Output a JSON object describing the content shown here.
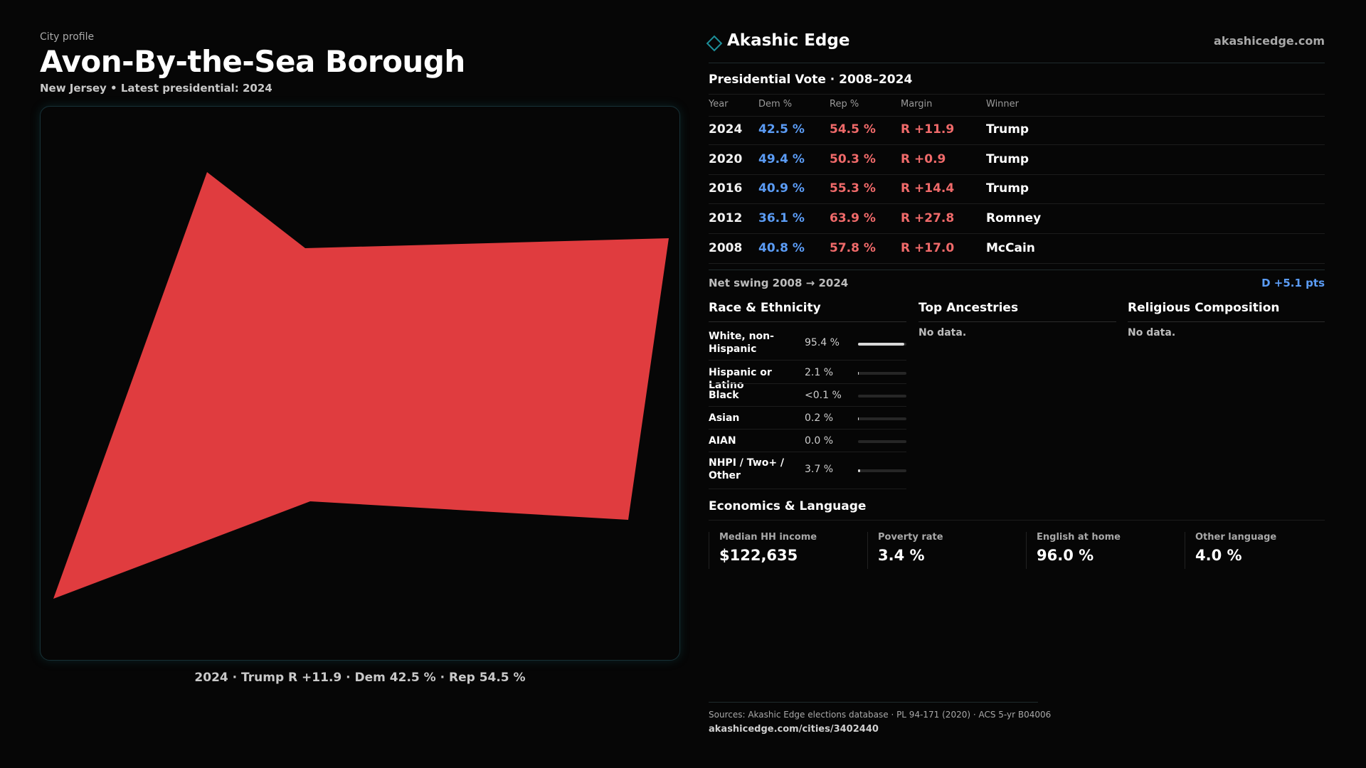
{
  "header": {
    "eyebrow": "City profile",
    "title": "Avon-By-the-Sea Borough",
    "subtitle": "New Jersey • Latest presidential: 2024"
  },
  "map": {
    "caption": "2024 · Trump R +11.9 · Dem 42.5 % · Rep 54.5 %",
    "fill_color": "#e03c3f"
  },
  "brand": {
    "name": "Akashic Edge",
    "url": "akashicedge.com",
    "icon": "diamond-icon"
  },
  "presidential": {
    "title": "Presidential Vote · 2008–2024",
    "columns": [
      "Year",
      "Dem %",
      "Rep %",
      "Margin",
      "Winner"
    ],
    "rows": [
      {
        "year": "2024",
        "dem": "42.5 %",
        "rep": "54.5 %",
        "margin": "R +11.9",
        "winner": "Trump"
      },
      {
        "year": "2020",
        "dem": "49.4 %",
        "rep": "50.3 %",
        "margin": "R +0.9",
        "winner": "Trump"
      },
      {
        "year": "2016",
        "dem": "40.9 %",
        "rep": "55.3 %",
        "margin": "R +14.4",
        "winner": "Trump"
      },
      {
        "year": "2012",
        "dem": "36.1 %",
        "rep": "63.9 %",
        "margin": "R +27.8",
        "winner": "Romney"
      },
      {
        "year": "2008",
        "dem": "40.8 %",
        "rep": "57.8 %",
        "margin": "R +17.0",
        "winner": "McCain"
      }
    ],
    "swing_label": "Net swing 2008 → 2024",
    "swing_value": "D +5.1 pts"
  },
  "race": {
    "title": "Race & Ethnicity",
    "rows": [
      {
        "label": "White, non-Hispanic",
        "value": "95.4 %",
        "share": 0.954
      },
      {
        "label": "Hispanic or Latino",
        "value": "2.1 %",
        "share": 0.021
      },
      {
        "label": "Black",
        "value": "<0.1 %",
        "share": 0.0
      },
      {
        "label": "Asian",
        "value": "0.2 %",
        "share": 0.002
      },
      {
        "label": "AIAN",
        "value": "0.0 %",
        "share": 0.0
      },
      {
        "label": "NHPI / Two+ / Other",
        "value": "3.7 %",
        "share": 0.037
      }
    ]
  },
  "ancestries": {
    "title": "Top Ancestries",
    "empty": "No data."
  },
  "religion": {
    "title": "Religious Composition",
    "empty": "No data."
  },
  "economics": {
    "title": "Economics & Language",
    "stats": [
      {
        "label": "Median HH income",
        "value": "$122,635"
      },
      {
        "label": "Poverty rate",
        "value": "3.4 %"
      },
      {
        "label": "English at home",
        "value": "96.0 %"
      },
      {
        "label": "Other language",
        "value": "4.0 %"
      }
    ]
  },
  "footer": {
    "sources": "Sources: Akashic Edge elections database · PL 94-171 (2020) · ACS 5-yr B04006",
    "url": "akashicedge.com/cities/3402440"
  }
}
